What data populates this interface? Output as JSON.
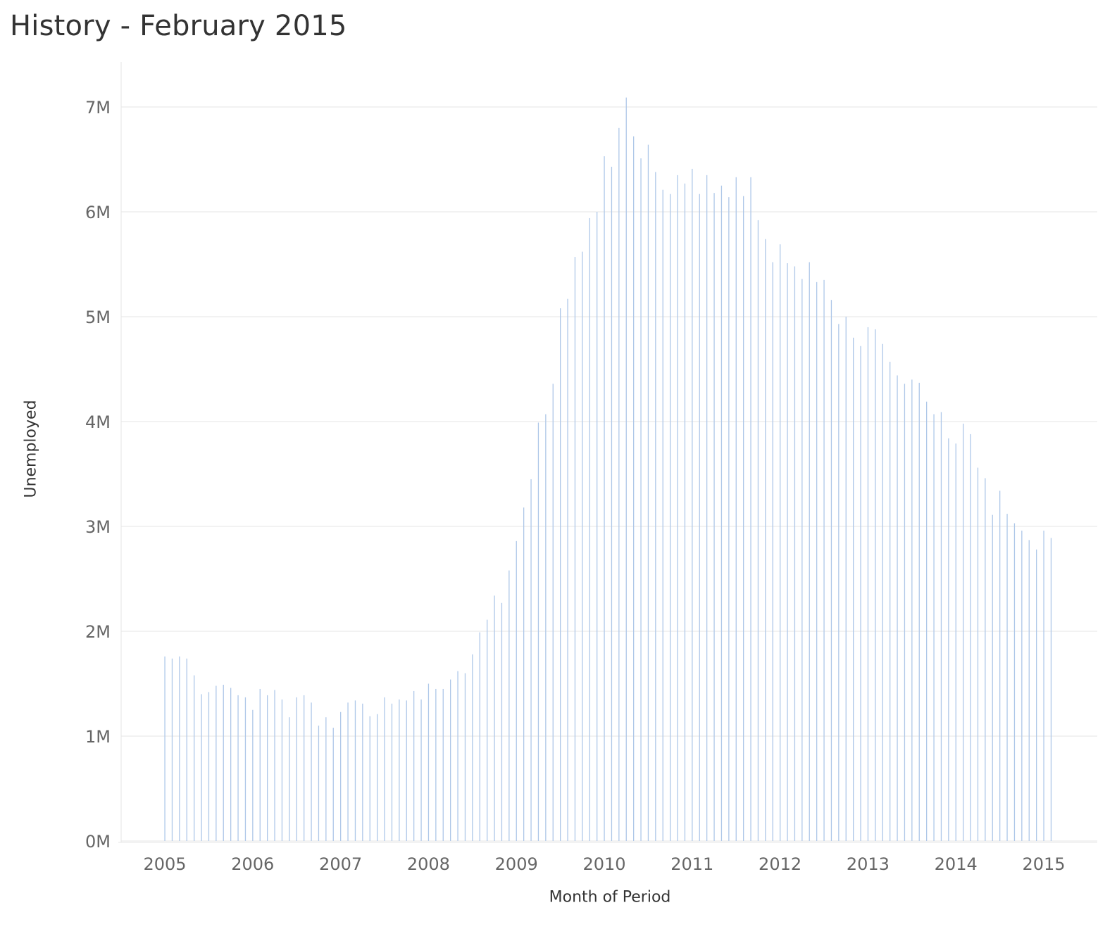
{
  "chart_data": {
    "type": "bar",
    "title": "History - February 2015",
    "xlabel": "Month of Period",
    "ylabel": "Unemployed",
    "ylim": [
      0,
      7400000
    ],
    "y_ticks": [
      0,
      1000000,
      2000000,
      3000000,
      4000000,
      5000000,
      6000000,
      7000000
    ],
    "y_tick_labels": [
      "0M",
      "1M",
      "2M",
      "3M",
      "4M",
      "5M",
      "6M",
      "7M"
    ],
    "x_ticks": [
      "2005",
      "2006",
      "2007",
      "2008",
      "2009",
      "2010",
      "2011",
      "2012",
      "2013",
      "2014",
      "2015"
    ],
    "grid": true,
    "bar_color": "#aec7e8",
    "start_period": "2005-01",
    "end_period": "2015-02",
    "values": [
      1760000,
      1740000,
      1760000,
      1740000,
      1580000,
      1400000,
      1420000,
      1480000,
      1490000,
      1460000,
      1390000,
      1370000,
      1250000,
      1450000,
      1390000,
      1440000,
      1350000,
      1180000,
      1370000,
      1390000,
      1320000,
      1100000,
      1180000,
      1080000,
      1230000,
      1320000,
      1340000,
      1310000,
      1190000,
      1210000,
      1370000,
      1310000,
      1350000,
      1340000,
      1430000,
      1350000,
      1500000,
      1450000,
      1450000,
      1540000,
      1620000,
      1600000,
      1780000,
      1990000,
      2110000,
      2340000,
      2270000,
      2580000,
      2860000,
      3180000,
      3450000,
      3990000,
      4070000,
      4360000,
      5080000,
      5170000,
      5570000,
      5620000,
      5940000,
      6000000,
      6530000,
      6430000,
      6800000,
      7090000,
      6720000,
      6510000,
      6640000,
      6380000,
      6210000,
      6170000,
      6350000,
      6270000,
      6410000,
      6170000,
      6350000,
      6180000,
      6250000,
      6140000,
      6330000,
      6150000,
      6330000,
      5920000,
      5740000,
      5520000,
      5690000,
      5510000,
      5480000,
      5360000,
      5520000,
      5330000,
      5350000,
      5160000,
      4930000,
      5000000,
      4800000,
      4720000,
      4900000,
      4880000,
      4740000,
      4570000,
      4440000,
      4360000,
      4400000,
      4370000,
      4190000,
      4070000,
      4090000,
      3840000,
      3790000,
      3980000,
      3880000,
      3560000,
      3460000,
      3110000,
      3340000,
      3120000,
      3030000,
      2960000,
      2870000,
      2780000,
      2960000,
      2890000
    ]
  }
}
